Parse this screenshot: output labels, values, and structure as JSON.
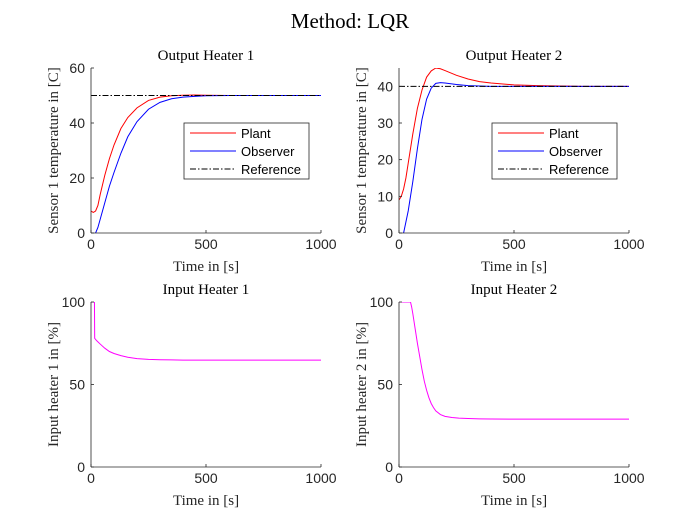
{
  "figure": {
    "suptitle": "Method: LQR"
  },
  "chart_data": [
    {
      "type": "line",
      "title": "Output Heater 1",
      "xlabel": "Time in [s]",
      "ylabel": "Sensor 1 temperature in [C]",
      "xlim": [
        0,
        1000
      ],
      "ylim": [
        0,
        60
      ],
      "xticks": [
        0,
        500,
        1000
      ],
      "yticks": [
        0,
        20,
        40,
        60
      ],
      "legend": {
        "position": "right",
        "entries": [
          "Plant",
          "Observer",
          "Reference"
        ]
      },
      "series": [
        {
          "name": "Plant",
          "color": "#ff0000",
          "dash": "solid",
          "x": [
            0,
            10,
            20,
            30,
            40,
            60,
            80,
            100,
            130,
            160,
            200,
            250,
            300,
            350,
            400,
            450,
            500,
            600,
            700,
            800,
            1000
          ],
          "y": [
            8,
            7.5,
            8,
            10,
            14,
            21,
            27,
            32,
            38,
            42,
            45.5,
            48.2,
            49.4,
            49.9,
            50.1,
            50.2,
            50.1,
            50.0,
            50.0,
            50.0,
            50.0
          ]
        },
        {
          "name": "Observer",
          "color": "#0000ff",
          "dash": "solid",
          "x": [
            0,
            5,
            10,
            15,
            20,
            30,
            40,
            60,
            80,
            100,
            130,
            160,
            200,
            250,
            300,
            350,
            400,
            450,
            500,
            600,
            700,
            800,
            1000
          ],
          "y": [
            0,
            -1,
            -2,
            -1,
            0,
            2,
            5,
            11,
            17,
            22,
            29,
            35,
            40.5,
            45,
            47.5,
            48.8,
            49.4,
            49.7,
            49.9,
            50.0,
            50.0,
            50.0,
            50.0
          ]
        },
        {
          "name": "Reference",
          "color": "#000000",
          "dash": "dashdot",
          "x": [
            0,
            1000
          ],
          "y": [
            50,
            50
          ]
        }
      ]
    },
    {
      "type": "line",
      "title": "Output Heater 2",
      "xlabel": "Time in [s]",
      "ylabel": "Sensor 1 temperature in [C]",
      "xlim": [
        0,
        1000
      ],
      "ylim": [
        0,
        45
      ],
      "xticks": [
        0,
        500,
        1000
      ],
      "yticks": [
        0,
        10,
        20,
        30,
        40
      ],
      "legend": {
        "position": "right",
        "entries": [
          "Plant",
          "Observer",
          "Reference"
        ]
      },
      "series": [
        {
          "name": "Plant",
          "color": "#ff0000",
          "dash": "solid",
          "x": [
            0,
            10,
            20,
            30,
            40,
            60,
            80,
            100,
            120,
            140,
            160,
            180,
            200,
            250,
            300,
            350,
            400,
            500,
            600,
            700,
            800,
            1000
          ],
          "y": [
            9,
            10,
            12,
            15,
            19,
            27,
            34,
            39,
            42.5,
            44.2,
            45,
            44.8,
            44.3,
            43,
            42,
            41.3,
            40.9,
            40.4,
            40.2,
            40.1,
            40.0,
            40.0
          ]
        },
        {
          "name": "Observer",
          "color": "#0000ff",
          "dash": "solid",
          "x": [
            0,
            5,
            10,
            15,
            20,
            30,
            40,
            60,
            80,
            100,
            120,
            140,
            160,
            180,
            200,
            250,
            300,
            350,
            400,
            500,
            600,
            800,
            1000
          ],
          "y": [
            0,
            -1,
            -2,
            -1,
            0,
            3,
            6,
            14,
            23,
            31,
            36.5,
            39.5,
            40.8,
            41,
            40.9,
            40.5,
            40.2,
            40.1,
            40.0,
            40.0,
            40.0,
            40.0,
            40.0
          ]
        },
        {
          "name": "Reference",
          "color": "#000000",
          "dash": "dashdot",
          "x": [
            0,
            1000
          ],
          "y": [
            40,
            40
          ]
        }
      ]
    },
    {
      "type": "line",
      "title": "Input Heater 1",
      "xlabel": "Time in [s]",
      "ylabel": "Input heater 1 in [%]",
      "xlim": [
        0,
        1000
      ],
      "ylim": [
        0,
        100
      ],
      "xticks": [
        0,
        500,
        1000
      ],
      "yticks": [
        0,
        50,
        100
      ],
      "series": [
        {
          "color": "#ff00ff",
          "dash": "solid",
          "x": [
            0,
            15,
            16,
            25,
            40,
            60,
            80,
            100,
            130,
            160,
            200,
            250,
            300,
            350,
            400,
            500,
            600,
            700,
            800,
            1000
          ],
          "y": [
            100,
            100,
            78,
            76.5,
            74.5,
            72,
            70,
            68.8,
            67.5,
            66.5,
            65.7,
            65.2,
            65.0,
            64.9,
            64.8,
            64.8,
            64.8,
            64.8,
            64.8,
            64.8
          ]
        }
      ]
    },
    {
      "type": "line",
      "title": "Input Heater 2",
      "xlabel": "Time in [s]",
      "ylabel": "Input heater 2 in [%]",
      "xlim": [
        0,
        1000
      ],
      "ylim": [
        0,
        100
      ],
      "xticks": [
        0,
        500,
        1000
      ],
      "yticks": [
        0,
        50,
        100
      ],
      "series": [
        {
          "color": "#ff00ff",
          "dash": "solid",
          "x": [
            0,
            50,
            55,
            60,
            70,
            80,
            90,
            100,
            110,
            120,
            130,
            140,
            150,
            160,
            180,
            200,
            230,
            260,
            300,
            350,
            400,
            500,
            600,
            700,
            800,
            1000
          ],
          "y": [
            100,
            100,
            97,
            93,
            84,
            75,
            67,
            59,
            52,
            46.5,
            42,
            38.5,
            36,
            34,
            31.8,
            30.7,
            30,
            29.6,
            29.4,
            29.2,
            29.1,
            29.0,
            29.0,
            29.0,
            29.0,
            29.0
          ]
        }
      ]
    }
  ]
}
